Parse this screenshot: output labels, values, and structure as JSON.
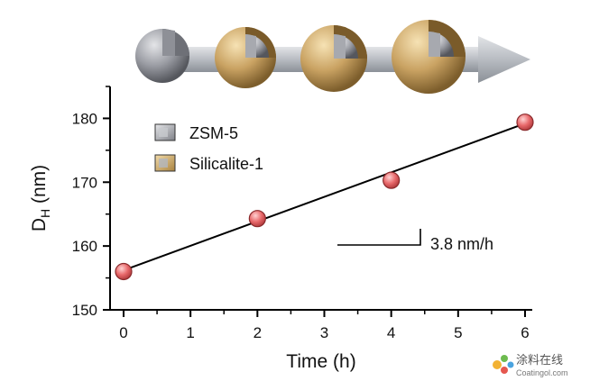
{
  "chart_data": {
    "type": "scatter",
    "xlabel": "Time (h)",
    "ylabel": "D",
    "ylabel_subscript": "H",
    "ylabel_unit": "(nm)",
    "xlim": [
      0,
      6
    ],
    "ylim": [
      150,
      185
    ],
    "x_ticks": [
      0,
      1,
      2,
      3,
      4,
      5,
      6
    ],
    "y_ticks": [
      150,
      160,
      170,
      180
    ],
    "grid": false,
    "legend_placement": "top-left",
    "legend": [
      {
        "label": "ZSM-5",
        "color": "#9a9ca3"
      },
      {
        "label": "Silicalite-1",
        "color": "#c9a262"
      }
    ],
    "points": {
      "x": [
        0,
        2,
        4,
        6
      ],
      "y": [
        156,
        164.3,
        170.3,
        179.4
      ],
      "marker_color": "#e8696b"
    },
    "fit_line": {
      "x": [
        0,
        6
      ],
      "y": [
        156.2,
        179.2
      ]
    },
    "annotation": {
      "text": "3.8 nm/h"
    }
  },
  "watermark": {
    "cn": "涂料在线",
    "en": "Coatingol.com"
  },
  "colors": {
    "shell": "#c9a262",
    "core": "#9a9ca3",
    "arrow": "#b8bcc2",
    "marker": "#e8696b"
  }
}
